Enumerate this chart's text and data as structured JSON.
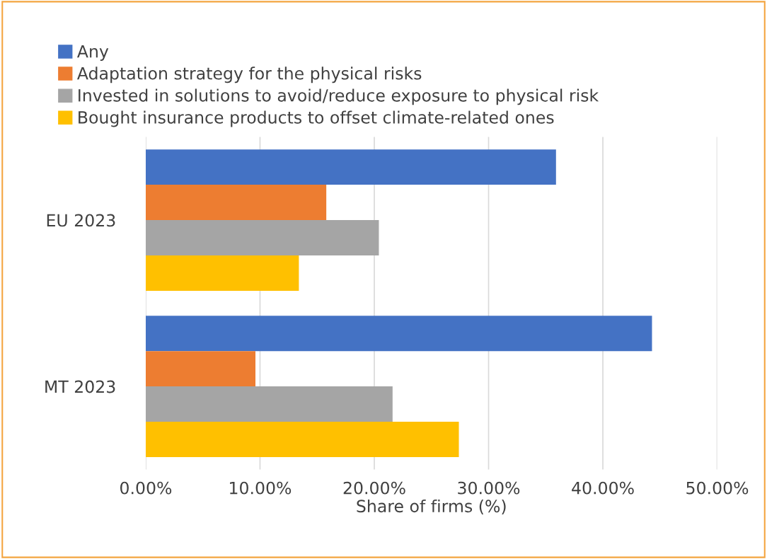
{
  "chart_data": {
    "type": "bar",
    "orientation": "horizontal",
    "xlabel": "Share of firms (%)",
    "categories": [
      "EU 2023",
      "MT 2023"
    ],
    "series": [
      {
        "name": "Any",
        "color": "#4472c4",
        "values": [
          35.9,
          44.3
        ]
      },
      {
        "name": "Adaptation strategy for the physical risks",
        "color": "#ed7d31",
        "values": [
          15.8,
          9.6
        ]
      },
      {
        "name": "Invested in solutions to avoid/reduce exposure to physical risk",
        "color": "#a5a5a5",
        "values": [
          20.4,
          21.6
        ]
      },
      {
        "name": "Bought insurance products to offset climate-related ones",
        "color": "#ffc000",
        "values": [
          13.4,
          27.4
        ]
      }
    ],
    "xlim": [
      0,
      50
    ],
    "xticks": [
      {
        "value": 0,
        "label": "0.00%"
      },
      {
        "value": 10,
        "label": "10.00%"
      },
      {
        "value": 20,
        "label": "20.00%"
      },
      {
        "value": 30,
        "label": "30.00%"
      },
      {
        "value": 40,
        "label": "40.00%"
      },
      {
        "value": 50,
        "label": "50.00%"
      }
    ],
    "grid": "x",
    "legend": "top left"
  }
}
